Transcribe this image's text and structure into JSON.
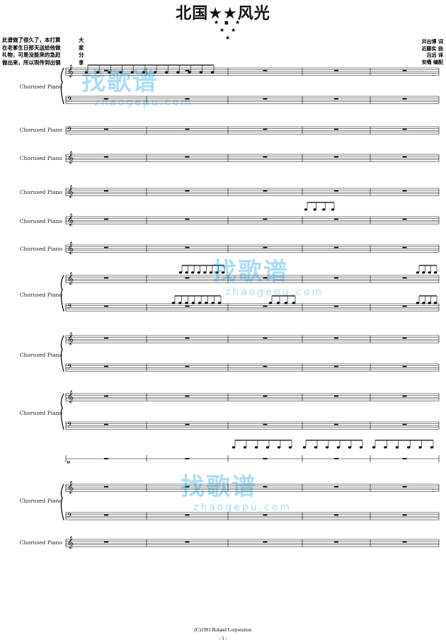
{
  "title": "北国★★风光",
  "intro_note": [
    {
      "text": "此谱做了很久了，本打算",
      "char": "大"
    },
    {
      "text": "在老爹生日那天送给他做",
      "char": "家"
    },
    {
      "text": "礼物，可是没能来的急赶",
      "char": "分"
    },
    {
      "text": "做出来，所以现传到出钢",
      "char": "享"
    }
  ],
  "credits": [
    "井出博 词",
    "近藤实 曲",
    "吕远 译",
    "安桶 编配"
  ],
  "instrument_label": "Chorused Piano",
  "watermark": {
    "brand": "找歌谱",
    "url": "zhaogepu.com"
  },
  "footer": {
    "copyright": "(C)1991 Roland Corporation",
    "page": "- 1 -"
  },
  "colors": {
    "watermark": "#0096dc",
    "staff": "#000000"
  }
}
